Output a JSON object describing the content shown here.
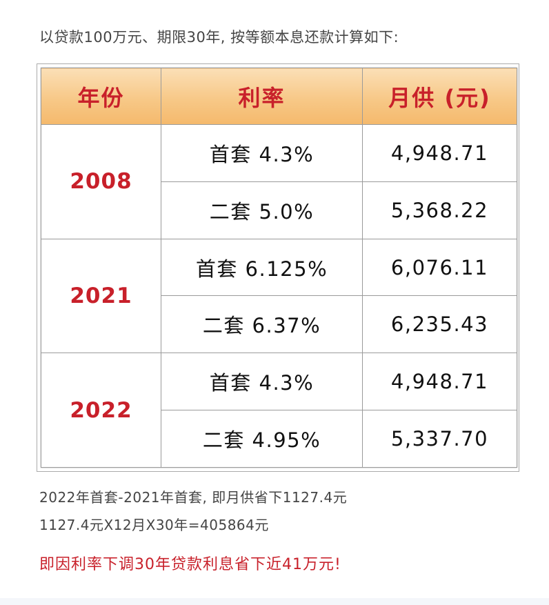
{
  "intro": "以贷款100万元、期限30年, 按等额本息还款计算如下:",
  "table": {
    "headers": [
      "年份",
      "利率",
      "月供 (元)"
    ],
    "groups": [
      {
        "year": "2008",
        "rows": [
          {
            "rate": "首套 4.3%",
            "payment": "4,948.71"
          },
          {
            "rate": "二套 5.0%",
            "payment": "5,368.22"
          }
        ]
      },
      {
        "year": "2021",
        "rows": [
          {
            "rate": "首套 6.125%",
            "payment": "6,076.11"
          },
          {
            "rate": "二套 6.37%",
            "payment": "6,235.43"
          }
        ]
      },
      {
        "year": "2022",
        "rows": [
          {
            "rate": "首套 4.3%",
            "payment": "4,948.71"
          },
          {
            "rate": "二套 4.95%",
            "payment": "5,337.70"
          }
        ]
      }
    ]
  },
  "notes": [
    "2022年首套-2021年首套, 即月供省下1127.4元",
    "1127.4元X12月X30年=405864元"
  ],
  "conclusion": "即因利率下调30年贷款利息省下近41万元!",
  "colors": {
    "accent_red": "#c8202a",
    "header_gold": "#f7c887"
  }
}
